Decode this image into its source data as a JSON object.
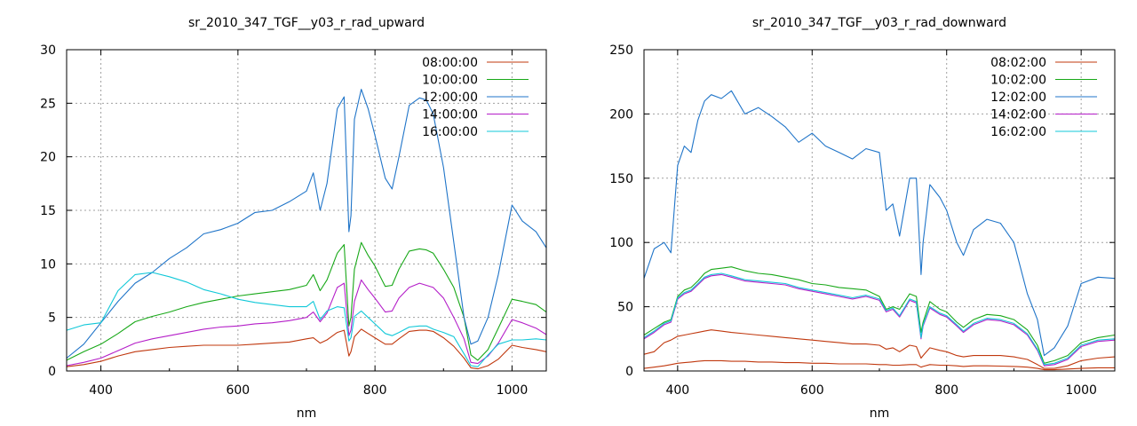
{
  "colors": {
    "s08": "#c0380e",
    "s10": "#18a818",
    "s12": "#1f74c8",
    "s14": "#b41ec8",
    "s16": "#10c8d8"
  },
  "chart_data": [
    {
      "type": "line",
      "title": "sr_2010_347_TGF__y03_r_rad_upward",
      "xlabel": "nm",
      "ylabel": "",
      "xlim": [
        350,
        1050
      ],
      "ylim": [
        0,
        30
      ],
      "xticks": [
        400,
        600,
        800,
        1000
      ],
      "yticks": [
        0,
        5,
        10,
        15,
        20,
        25,
        30
      ],
      "grid": true,
      "legend_position": "top-right",
      "x": [
        350,
        375,
        400,
        425,
        450,
        475,
        500,
        525,
        550,
        575,
        600,
        625,
        650,
        675,
        700,
        710,
        720,
        730,
        745,
        755,
        762,
        765,
        770,
        780,
        790,
        800,
        815,
        825,
        835,
        850,
        865,
        875,
        885,
        900,
        915,
        930,
        940,
        950,
        965,
        980,
        1000,
        1015,
        1035,
        1050
      ],
      "series": [
        {
          "name": "08:00:00",
          "color_key": "s08",
          "values": [
            0.4,
            0.6,
            0.9,
            1.4,
            1.8,
            2.0,
            2.2,
            2.3,
            2.4,
            2.4,
            2.4,
            2.5,
            2.6,
            2.7,
            3.0,
            3.1,
            2.6,
            2.9,
            3.6,
            3.8,
            1.4,
            1.8,
            3.2,
            3.9,
            3.5,
            3.1,
            2.5,
            2.5,
            3.0,
            3.7,
            3.8,
            3.8,
            3.7,
            3.1,
            2.3,
            1.2,
            0.3,
            0.2,
            0.5,
            1.1,
            2.4,
            2.2,
            2.0,
            1.8
          ]
        },
        {
          "name": "10:00:00",
          "color_key": "s10",
          "values": [
            1.0,
            1.8,
            2.5,
            3.5,
            4.6,
            5.1,
            5.5,
            6.0,
            6.4,
            6.7,
            7.0,
            7.2,
            7.4,
            7.6,
            8.0,
            9.0,
            7.5,
            8.5,
            11.0,
            11.8,
            4.2,
            5.0,
            9.5,
            12.0,
            10.8,
            9.8,
            7.9,
            8.0,
            9.5,
            11.2,
            11.4,
            11.3,
            11.0,
            9.5,
            7.8,
            5.0,
            1.5,
            1.0,
            2.0,
            4.0,
            6.7,
            6.5,
            6.2,
            5.5
          ]
        },
        {
          "name": "12:00:00",
          "color_key": "s12",
          "values": [
            1.2,
            2.5,
            4.5,
            6.5,
            8.2,
            9.2,
            10.5,
            11.5,
            12.8,
            13.2,
            13.8,
            14.8,
            15.0,
            15.8,
            16.8,
            18.5,
            15.0,
            17.5,
            24.5,
            25.6,
            13.0,
            14.5,
            23.5,
            26.3,
            24.5,
            22.0,
            18.0,
            17.0,
            20.0,
            24.8,
            25.5,
            25.3,
            24.0,
            19.0,
            12.0,
            5.0,
            2.5,
            2.8,
            5.0,
            9.0,
            15.5,
            14.0,
            13.0,
            11.5
          ]
        },
        {
          "name": "14:00:00",
          "color_key": "s14",
          "values": [
            0.5,
            0.8,
            1.2,
            1.9,
            2.6,
            3.0,
            3.3,
            3.6,
            3.9,
            4.1,
            4.2,
            4.4,
            4.5,
            4.7,
            5.0,
            5.5,
            4.6,
            5.4,
            7.8,
            8.2,
            3.3,
            3.8,
            6.5,
            8.5,
            7.6,
            6.8,
            5.5,
            5.6,
            6.8,
            7.8,
            8.2,
            8.0,
            7.8,
            6.8,
            5.0,
            3.0,
            0.8,
            0.7,
            1.4,
            2.6,
            4.8,
            4.5,
            4.0,
            3.4
          ]
        },
        {
          "name": "16:00:00",
          "color_key": "s16",
          "values": [
            3.8,
            4.3,
            4.5,
            7.5,
            9.0,
            9.2,
            8.8,
            8.3,
            7.6,
            7.2,
            6.7,
            6.4,
            6.2,
            6.0,
            6.0,
            6.5,
            4.8,
            5.6,
            6.0,
            5.9,
            2.8,
            3.1,
            5.1,
            5.6,
            5.0,
            4.4,
            3.5,
            3.3,
            3.6,
            4.1,
            4.2,
            4.2,
            3.9,
            3.6,
            3.2,
            1.6,
            0.5,
            0.4,
            1.5,
            2.5,
            2.9,
            2.9,
            3.0,
            2.9
          ]
        }
      ]
    },
    {
      "type": "line",
      "title": "sr_2010_347_TGF__y03_r_rad_downward",
      "xlabel": "nm",
      "ylabel": "",
      "xlim": [
        350,
        1050
      ],
      "ylim": [
        0,
        250
      ],
      "xticks": [
        400,
        600,
        800,
        1000
      ],
      "yticks": [
        0,
        50,
        100,
        150,
        200,
        250
      ],
      "grid": true,
      "legend_position": "top-right",
      "x": [
        350,
        365,
        380,
        390,
        400,
        410,
        420,
        430,
        440,
        450,
        465,
        480,
        500,
        520,
        540,
        560,
        580,
        600,
        620,
        640,
        660,
        680,
        700,
        710,
        720,
        730,
        745,
        755,
        762,
        765,
        775,
        790,
        800,
        815,
        825,
        840,
        860,
        880,
        900,
        920,
        935,
        945,
        960,
        980,
        1000,
        1025,
        1050
      ],
      "series": [
        {
          "name": "08:02:00",
          "color_key": "s08",
          "values": [
            2,
            3,
            4,
            5,
            6,
            6.5,
            7,
            7.5,
            8,
            8,
            8,
            7.5,
            7.5,
            7,
            7,
            6.5,
            6.5,
            6,
            6,
            5.5,
            5.5,
            5.5,
            5,
            5,
            4.5,
            4.5,
            5,
            5,
            3,
            3.5,
            5,
            4.5,
            4.5,
            4,
            3.5,
            4,
            4,
            3.8,
            3.5,
            3,
            2,
            1,
            1,
            1.5,
            2,
            2.5,
            2.5
          ]
        },
        {
          "name": "10:02:00",
          "color_key": "s10",
          "values": [
            28,
            33,
            38,
            40,
            58,
            63,
            65,
            70,
            76,
            79,
            80,
            81,
            78,
            76,
            75,
            73,
            71,
            68,
            67,
            65,
            64,
            63,
            58,
            48,
            50,
            48,
            60,
            58,
            30,
            38,
            54,
            48,
            46,
            38,
            34,
            40,
            44,
            43,
            40,
            32,
            20,
            6,
            8,
            12,
            22,
            26,
            28
          ]
        },
        {
          "name": "12:02:00",
          "color_key": "s12",
          "values": [
            72,
            95,
            100,
            92,
            160,
            175,
            170,
            195,
            210,
            215,
            212,
            218,
            200,
            205,
            198,
            190,
            178,
            185,
            175,
            170,
            165,
            173,
            170,
            125,
            130,
            105,
            150,
            150,
            75,
            100,
            145,
            135,
            125,
            100,
            90,
            110,
            118,
            115,
            100,
            60,
            40,
            12,
            18,
            35,
            68,
            73,
            72
          ]
        },
        {
          "name": "14:02:00",
          "color_key": "s14",
          "values": [
            25,
            30,
            36,
            38,
            56,
            60,
            62,
            67,
            72,
            74,
            75,
            73,
            70,
            69,
            68,
            67,
            64,
            62,
            60,
            58,
            56,
            58,
            55,
            46,
            48,
            42,
            55,
            53,
            25,
            35,
            49,
            44,
            42,
            35,
            30,
            36,
            40,
            39,
            36,
            28,
            16,
            4,
            5,
            9,
            19,
            23,
            24
          ]
        },
        {
          "name": "16:02:00",
          "color_key": "s16",
          "values": [
            26,
            31,
            37,
            39,
            57,
            61,
            63,
            68,
            73,
            75,
            76,
            74,
            71,
            70,
            69,
            68,
            65,
            63,
            61,
            59,
            57,
            59,
            56,
            47,
            49,
            43,
            56,
            54,
            26,
            36,
            50,
            45,
            43,
            36,
            31,
            37,
            41,
            40,
            37,
            29,
            17,
            5,
            6,
            10,
            20,
            24,
            25
          ]
        }
      ],
      "series_extra": [
        {
          "name_ref": "08:02:00",
          "note_values_lower": [
            13,
            15,
            22,
            24,
            27,
            28,
            29,
            30,
            31,
            32,
            31,
            30,
            29,
            28,
            27,
            26,
            25,
            24,
            23,
            22,
            21,
            21,
            20,
            17,
            18,
            15,
            20,
            19,
            10,
            12,
            18,
            16,
            15,
            12,
            11,
            12,
            12,
            12,
            11,
            9,
            5,
            2,
            2,
            4,
            8,
            10,
            11
          ]
        }
      ]
    }
  ]
}
